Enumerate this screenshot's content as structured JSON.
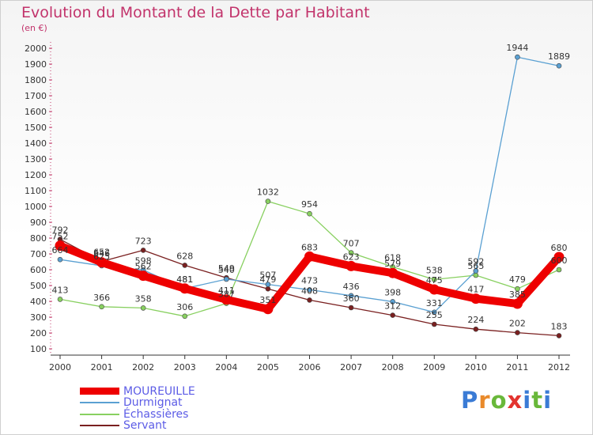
{
  "header": {
    "title": "Evolution du Montant de la Dette par Habitant",
    "unit": "(en €)"
  },
  "brand": {
    "text": "Proxiti",
    "letter_colors": [
      "#3a7bd5",
      "#e98a2b",
      "#69b83a",
      "#e3342f",
      "#3a7bd5",
      "#69b83a",
      "#3a7bd5"
    ]
  },
  "chart_data": {
    "type": "line",
    "title": "Evolution du Montant de la Dette par Habitant",
    "ylabel": "(en €)",
    "xlabel": "",
    "x": [
      "2000",
      "2001",
      "2002",
      "2003",
      "2004",
      "2005",
      "2006",
      "2007",
      "2008",
      "2009",
      "2010",
      "2011",
      "2012"
    ],
    "ylim": [
      100,
      2000
    ],
    "yticks": [
      "100",
      "200",
      "300",
      "400",
      "500",
      "600",
      "700",
      "800",
      "900",
      "1000",
      "1100",
      "1200",
      "1300",
      "1400",
      "1500",
      "1600",
      "1700",
      "1800",
      "1900",
      "2000"
    ],
    "grid": false,
    "legend_position": "bottom-left",
    "series": [
      {
        "name": "MOUREUILLE",
        "color": "#ee0000",
        "values": [
          752,
          646,
          562,
          481,
          411,
          351,
          683,
          623,
          579,
          475,
          417,
          385,
          680
        ],
        "labels": [
          "752",
          "646",
          "562",
          "481",
          "411",
          "351",
          "683",
          "623",
          "579",
          "475",
          "417",
          "385",
          "680"
        ]
      },
      {
        "name": "Durmignat",
        "color": "#5aa0d2",
        "values": [
          664,
          625,
          598,
          481,
          540,
          507,
          473,
          436,
          398,
          331,
          592,
          1944,
          1889
        ],
        "labels": [
          "664",
          "625",
          "598",
          "481",
          "540",
          "507",
          "473",
          "436",
          "398",
          "331",
          "592",
          "1944",
          "1889"
        ]
      },
      {
        "name": "Échassières",
        "color": "#88d060",
        "values": [
          413,
          366,
          358,
          306,
          387,
          1032,
          954,
          707,
          618,
          538,
          565,
          479,
          600
        ],
        "labels": [
          "413",
          "366",
          "358",
          "306",
          "387",
          "1032",
          "954",
          "707",
          "618",
          "538",
          "565",
          "479",
          "600"
        ]
      },
      {
        "name": "Servant",
        "color": "#7a2020",
        "values": [
          792,
          652,
          723,
          628,
          549,
          479,
          408,
          360,
          312,
          255,
          224,
          202,
          183
        ],
        "labels": [
          "792",
          "652",
          "723",
          "628",
          "549",
          "479",
          "408",
          "360",
          "312",
          "255",
          "224",
          "202",
          "183"
        ]
      }
    ]
  }
}
